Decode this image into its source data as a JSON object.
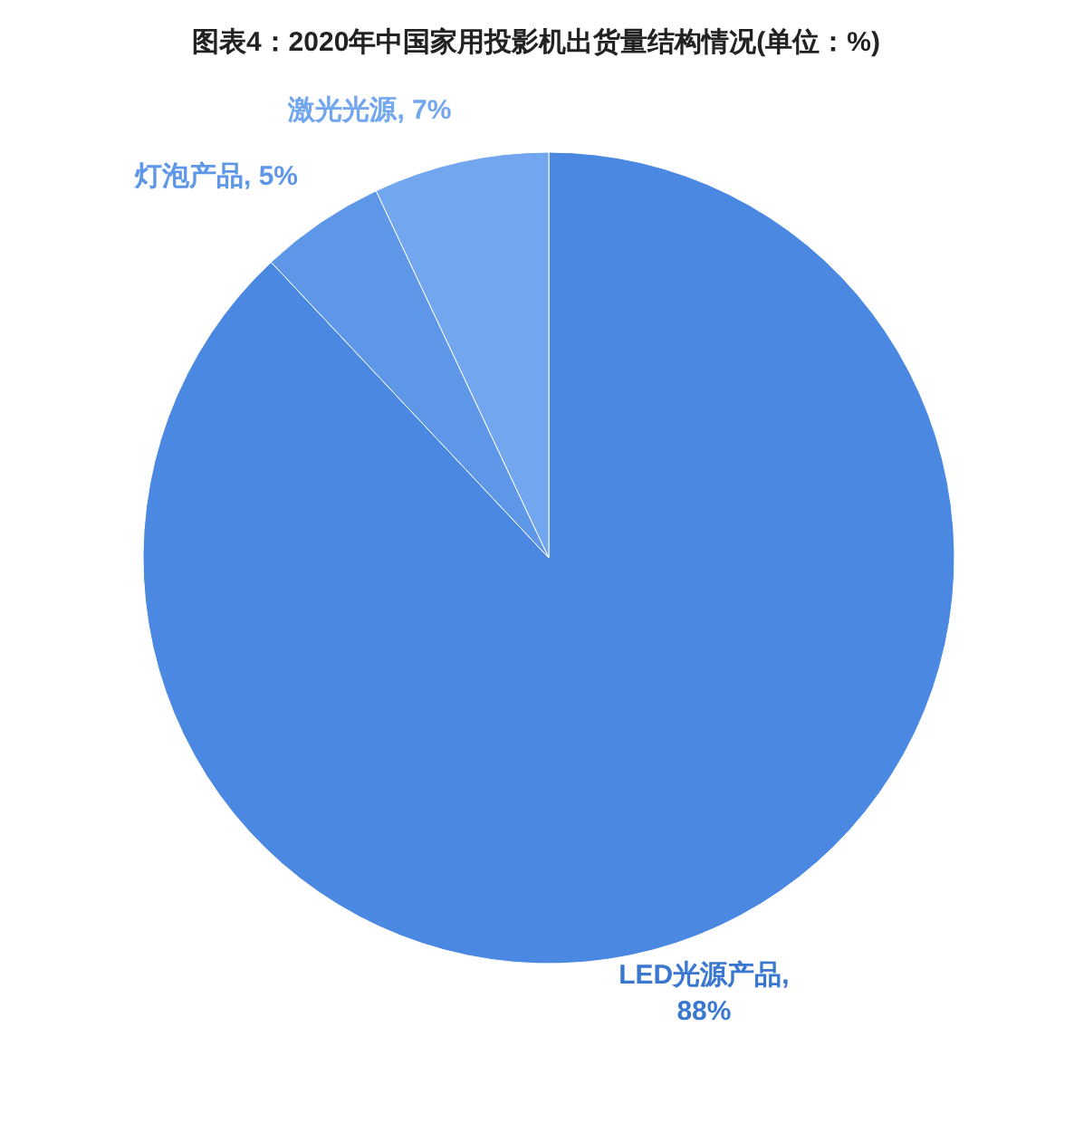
{
  "chart_data": {
    "type": "pie",
    "title": "图表4：2020年中国家用投影机出货量结构情况(单位：%)",
    "categories": [
      "LED光源产品",
      "灯泡产品",
      "激光光源"
    ],
    "values": [
      88,
      5,
      7
    ],
    "colors": [
      "#4a88e2",
      "#5f97e8",
      "#72a6ee"
    ],
    "value_labels": [
      ", 88%",
      ", 5%",
      ", 7%"
    ],
    "legend": false
  }
}
